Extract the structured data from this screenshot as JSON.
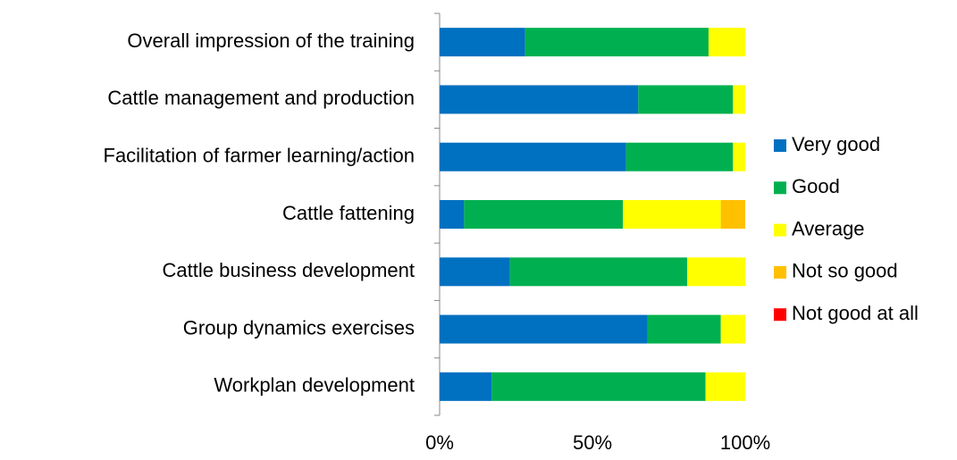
{
  "chart_data": {
    "type": "stacked-barh",
    "categories": [
      "Overall impression of the training",
      "Cattle management and production",
      "Facilitation of farmer learning/action",
      "Cattle fattening",
      "Cattle business development",
      "Group dynamics exercises",
      "Workplan development"
    ],
    "series": [
      {
        "name": "Very good",
        "color": "#0070C0",
        "values": [
          28,
          65,
          61,
          8,
          23,
          68,
          17
        ]
      },
      {
        "name": "Good",
        "color": "#00B050",
        "values": [
          60,
          31,
          35,
          52,
          58,
          24,
          70
        ]
      },
      {
        "name": "Average",
        "color": "#FFFF00",
        "values": [
          12,
          4,
          4,
          32,
          19,
          8,
          13
        ]
      },
      {
        "name": "Not so good",
        "color": "#FFC000",
        "values": [
          0,
          0,
          0,
          8,
          0,
          0,
          0
        ]
      },
      {
        "name": "Not good at all",
        "color": "#FF0000",
        "values": [
          0,
          0,
          0,
          0,
          0,
          0,
          0
        ]
      }
    ],
    "xlim": [
      0,
      100
    ],
    "xticks": [
      {
        "value": 0,
        "label": "0%"
      },
      {
        "value": 50,
        "label": "50%"
      },
      {
        "value": 100,
        "label": "100%"
      }
    ],
    "grid": false,
    "legend": "right"
  }
}
